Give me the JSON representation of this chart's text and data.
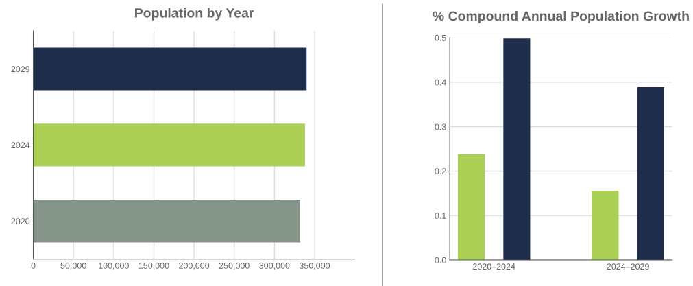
{
  "chart_data": [
    {
      "type": "bar",
      "orientation": "horizontal",
      "title": "Population by Year",
      "categories": [
        "2029",
        "2024",
        "2020"
      ],
      "values": [
        340000,
        338000,
        332000
      ],
      "colors": [
        "#1e2d4b",
        "#acd055",
        "#869589"
      ],
      "xlim": [
        0,
        400000
      ],
      "xticks": [
        0,
        {
          "value": 50000,
          "label": "50,000"
        },
        {
          "value": 100000,
          "label": "100,000"
        },
        {
          "value": 150000,
          "label": "150,000"
        },
        {
          "value": 200000,
          "label": "200,000"
        },
        {
          "value": 250000,
          "label": "250,000"
        },
        {
          "value": 300000,
          "label": "300,000"
        },
        {
          "value": 350000,
          "label": "350,000"
        }
      ],
      "grid": "x"
    },
    {
      "type": "bar",
      "title": "% Compound Annual Population Growth",
      "categories": [
        "2020–2024",
        "2024–2029"
      ],
      "series": [
        {
          "color": "#acd055",
          "values": [
            0.238,
            0.156
          ]
        },
        {
          "color": "#1e2d4b",
          "values": [
            0.498,
            0.389
          ]
        }
      ],
      "ylim": [
        0,
        0.5
      ],
      "yticks": [
        {
          "value": 0,
          "label": "0.0"
        },
        0.1,
        0.2,
        0.3,
        0.4,
        0.5
      ],
      "grid": "y"
    }
  ]
}
